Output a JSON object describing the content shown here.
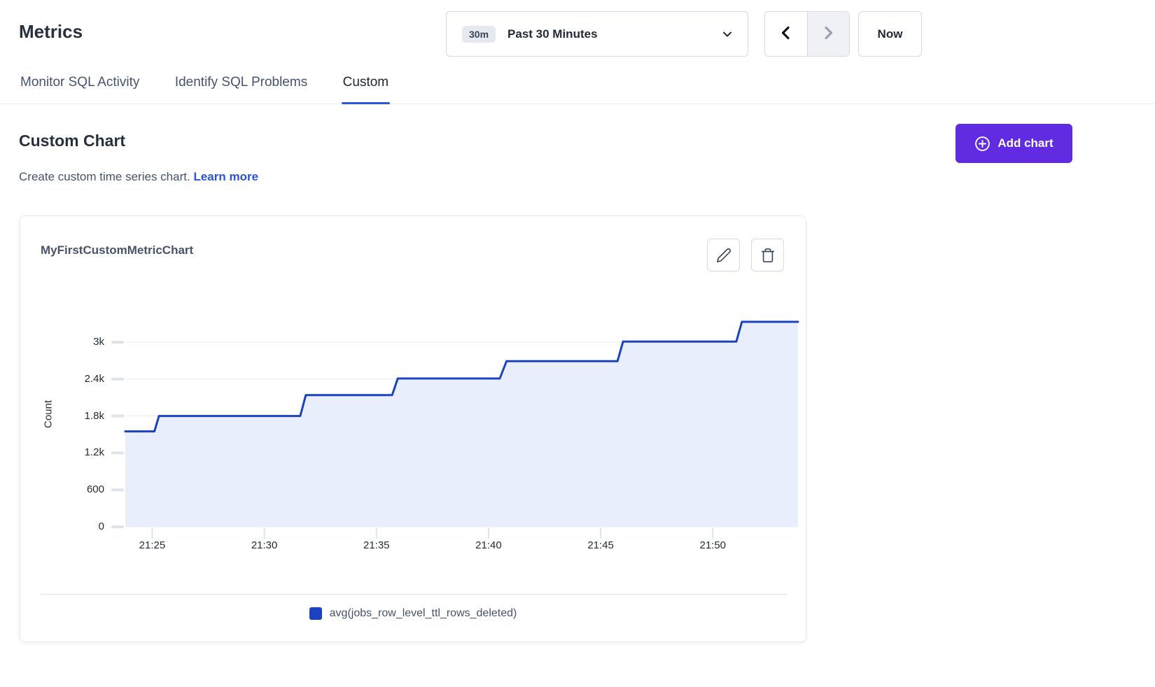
{
  "header": {
    "title": "Metrics"
  },
  "time_controls": {
    "range_badge": "30m",
    "range_label": "Past 30 Minutes",
    "now_label": "Now"
  },
  "tabs": [
    {
      "label": "Monitor SQL Activity",
      "active": false
    },
    {
      "label": "Identify SQL Problems",
      "active": false
    },
    {
      "label": "Custom",
      "active": true
    }
  ],
  "section": {
    "title": "Custom Chart",
    "subtitle": "Create custom time series chart.",
    "link_label": "Learn more",
    "add_button_label": "Add chart"
  },
  "card": {
    "title": "MyFirstCustomMetricChart"
  },
  "theme": {
    "accent_purple": "#612BE2",
    "link_blue": "#2A53D6",
    "tab_underline": "#2B59D8"
  },
  "chart_data": {
    "type": "area",
    "line_style": "step",
    "title": "MyFirstCustomMetricChart",
    "xlabel": "",
    "ylabel": "Count",
    "grid": true,
    "legend_position": "bottom",
    "x_start": "21:23:48",
    "x_end": "21:53:48",
    "x_ticks": [
      "21:25",
      "21:30",
      "21:35",
      "21:40",
      "21:45",
      "21:50"
    ],
    "y_ticks": [
      {
        "value": 0,
        "label": "0"
      },
      {
        "value": 600,
        "label": "600"
      },
      {
        "value": 1200,
        "label": "1.2k"
      },
      {
        "value": 1800,
        "label": "1.8k"
      },
      {
        "value": 2400,
        "label": "2.4k"
      },
      {
        "value": 3000,
        "label": "3k"
      }
    ],
    "ylim": [
      0,
      3660
    ],
    "series": [
      {
        "name": "avg(jobs_row_level_ttl_rows_deleted)",
        "color": "#1C43BF",
        "fill": "#E8EEFB",
        "points": [
          {
            "time": "21:23:48",
            "value": 1550
          },
          {
            "time": "21:25:06",
            "value": 1550
          },
          {
            "time": "21:25:18",
            "value": 1800
          },
          {
            "time": "21:31:36",
            "value": 1800
          },
          {
            "time": "21:31:51",
            "value": 2140
          },
          {
            "time": "21:35:42",
            "value": 2140
          },
          {
            "time": "21:35:57",
            "value": 2410
          },
          {
            "time": "21:40:30",
            "value": 2410
          },
          {
            "time": "21:40:48",
            "value": 2690
          },
          {
            "time": "21:45:45",
            "value": 2690
          },
          {
            "time": "21:46:00",
            "value": 3010
          },
          {
            "time": "21:51:03",
            "value": 3010
          },
          {
            "time": "21:51:18",
            "value": 3330
          },
          {
            "time": "21:53:48",
            "value": 3330
          }
        ]
      }
    ]
  }
}
